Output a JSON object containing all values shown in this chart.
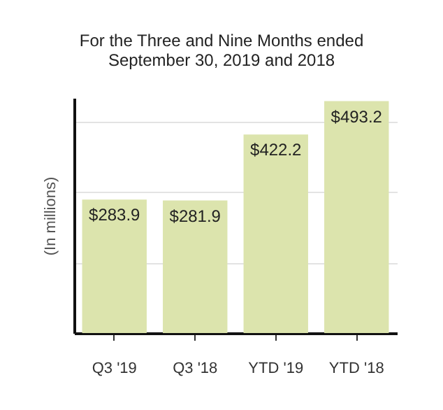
{
  "chart_data": {
    "type": "bar",
    "title": "For the Three and Nine Months ended\nSeptember 30, 2019 and 2018",
    "ylabel": "(In millions)",
    "categories": [
      "Q3 '19",
      "Q3 '18",
      "YTD '19",
      "YTD '18"
    ],
    "values": [
      283.9,
      281.9,
      422.2,
      493.2
    ],
    "value_labels": [
      "$283.9",
      "$281.9",
      "$422.2",
      "$493.2"
    ],
    "color": "#dce4ad",
    "ylim": [
      0,
      500
    ],
    "yticks": [
      {
        "value": 150,
        "label": null
      },
      {
        "value": 300,
        "label": null
      },
      {
        "value": 450,
        "label": null
      }
    ],
    "grid": "y",
    "tick_labels": "x"
  }
}
